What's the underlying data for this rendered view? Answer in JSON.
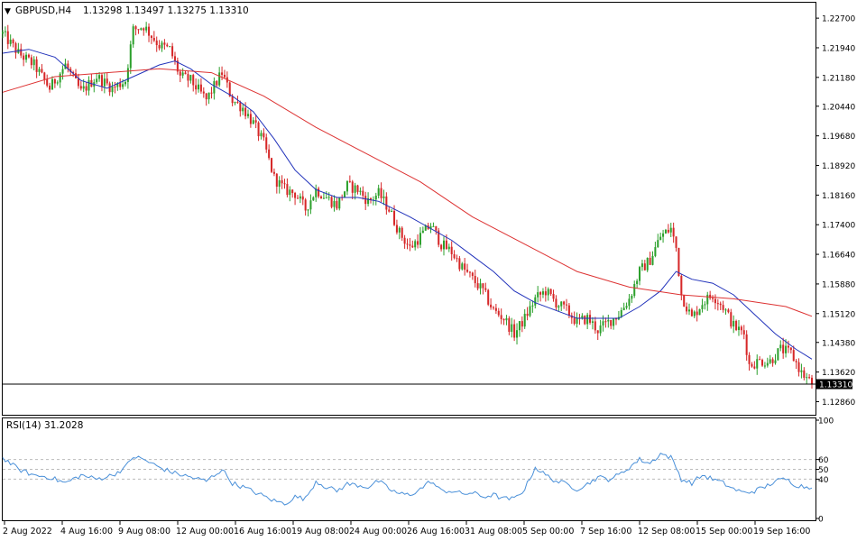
{
  "header": {
    "symbol": "GBPUSD,H4",
    "ohlc": "1.13298 1.13497 1.13275 1.13310"
  },
  "colors": {
    "bull": "#2ca02c",
    "bear": "#d62728",
    "ma_fast": "#2233bb",
    "ma_slow": "#dd3333",
    "rsi": "#4a90d9",
    "level_line": "#bbbbbb",
    "frame": "#000000"
  },
  "chart_data": [
    {
      "type": "candlestick",
      "title": "GBPUSD,H4",
      "y_ticks": [
        "1.22700",
        "1.21940",
        "1.21180",
        "1.20440",
        "1.19680",
        "1.18920",
        "1.18160",
        "1.17400",
        "1.16640",
        "1.15880",
        "1.15120",
        "1.14380",
        "1.13620",
        "1.12860"
      ],
      "ylim": [
        1.1257,
        1.2305
      ],
      "current_price": "1.13310",
      "x_ticks": [
        "2 Aug 2022",
        "4 Aug 16:00",
        "9 Aug 08:00",
        "12 Aug 00:00",
        "16 Aug 16:00",
        "19 Aug 08:00",
        "24 Aug 00:00",
        "26 Aug 16:00",
        "31 Aug 08:00",
        "5 Sep 00:00",
        "7 Sep 16:00",
        "12 Sep 08:00",
        "15 Sep 00:00",
        "19 Sep 16:00"
      ],
      "close_path": [
        [
          0,
          1.223
        ],
        [
          6,
          1.218
        ],
        [
          12,
          1.215
        ],
        [
          18,
          1.209
        ],
        [
          24,
          1.215
        ],
        [
          30,
          1.208
        ],
        [
          36,
          1.212
        ],
        [
          42,
          1.209
        ],
        [
          47,
          1.211
        ],
        [
          50,
          1.224
        ],
        [
          54,
          1.225
        ],
        [
          60,
          1.22
        ],
        [
          64,
          1.219
        ],
        [
          68,
          1.212
        ],
        [
          72,
          1.211
        ],
        [
          78,
          1.206
        ],
        [
          84,
          1.213
        ],
        [
          88,
          1.206
        ],
        [
          92,
          1.204
        ],
        [
          96,
          1.2
        ],
        [
          100,
          1.195
        ],
        [
          104,
          1.186
        ],
        [
          108,
          1.183
        ],
        [
          112,
          1.182
        ],
        [
          116,
          1.178
        ],
        [
          120,
          1.183
        ],
        [
          124,
          1.181
        ],
        [
          128,
          1.179
        ],
        [
          132,
          1.184
        ],
        [
          136,
          1.183
        ],
        [
          140,
          1.18
        ],
        [
          144,
          1.182
        ],
        [
          148,
          1.178
        ],
        [
          152,
          1.172
        ],
        [
          156,
          1.168
        ],
        [
          160,
          1.171
        ],
        [
          164,
          1.174
        ],
        [
          168,
          1.169
        ],
        [
          172,
          1.167
        ],
        [
          176,
          1.163
        ],
        [
          180,
          1.16
        ],
        [
          184,
          1.157
        ],
        [
          188,
          1.152
        ],
        [
          192,
          1.15
        ],
        [
          196,
          1.146
        ],
        [
          200,
          1.15
        ],
        [
          204,
          1.155
        ],
        [
          208,
          1.157
        ],
        [
          212,
          1.154
        ],
        [
          216,
          1.152
        ],
        [
          220,
          1.149
        ],
        [
          224,
          1.15
        ],
        [
          228,
          1.147
        ],
        [
          232,
          1.149
        ],
        [
          236,
          1.151
        ],
        [
          240,
          1.155
        ],
        [
          244,
          1.162
        ],
        [
          248,
          1.165
        ],
        [
          252,
          1.171
        ],
        [
          256,
          1.173
        ],
        [
          258,
          1.168
        ],
        [
          260,
          1.156
        ],
        [
          264,
          1.15
        ],
        [
          268,
          1.154
        ],
        [
          272,
          1.156
        ],
        [
          276,
          1.153
        ],
        [
          280,
          1.148
        ],
        [
          284,
          1.146
        ],
        [
          286,
          1.138
        ],
        [
          290,
          1.139
        ],
        [
          294,
          1.139
        ],
        [
          298,
          1.142
        ],
        [
          302,
          1.141
        ],
        [
          306,
          1.136
        ],
        [
          310,
          1.1331
        ]
      ],
      "series": [
        {
          "values": [
            [
              0,
              1.218
            ],
            [
              10,
              1.219
            ],
            [
              20,
              1.217
            ],
            [
              30,
              1.211
            ],
            [
              40,
              1.209
            ],
            [
              50,
              1.212
            ],
            [
              60,
              1.215
            ],
            [
              66,
              1.216
            ],
            [
              72,
              1.214
            ],
            [
              80,
              1.21
            ],
            [
              88,
              1.207
            ],
            [
              96,
              1.203
            ],
            [
              104,
              1.196
            ],
            [
              112,
              1.188
            ],
            [
              120,
              1.183
            ],
            [
              128,
              1.181
            ],
            [
              136,
              1.181
            ],
            [
              144,
              1.18
            ],
            [
              150,
              1.178
            ],
            [
              156,
              1.176
            ],
            [
              164,
              1.173
            ],
            [
              172,
              1.17
            ],
            [
              180,
              1.166
            ],
            [
              188,
              1.162
            ],
            [
              196,
              1.157
            ],
            [
              204,
              1.154
            ],
            [
              212,
              1.152
            ],
            [
              220,
              1.15
            ],
            [
              228,
              1.15
            ],
            [
              236,
              1.15
            ],
            [
              244,
              1.153
            ],
            [
              252,
              1.157
            ],
            [
              258,
              1.162
            ],
            [
              264,
              1.16
            ],
            [
              272,
              1.159
            ],
            [
              280,
              1.156
            ],
            [
              288,
              1.151
            ],
            [
              296,
              1.146
            ],
            [
              304,
              1.142
            ],
            [
              310,
              1.1395
            ]
          ]
        },
        {
          "values": [
            [
              0,
              1.208
            ],
            [
              20,
              1.212
            ],
            [
              40,
              1.213
            ],
            [
              60,
              1.214
            ],
            [
              80,
              1.213
            ],
            [
              100,
              1.207
            ],
            [
              120,
              1.199
            ],
            [
              140,
              1.192
            ],
            [
              160,
              1.185
            ],
            [
              180,
              1.176
            ],
            [
              200,
              1.169
            ],
            [
              220,
              1.162
            ],
            [
              240,
              1.158
            ],
            [
              260,
              1.156
            ],
            [
              280,
              1.155
            ],
            [
              300,
              1.153
            ],
            [
              310,
              1.1505
            ]
          ]
        }
      ]
    },
    {
      "type": "line",
      "title": "RSI(14) 31.2028",
      "y_ticks": [
        "100",
        "60",
        "50",
        "40",
        "0"
      ],
      "levels": [
        60,
        50,
        40
      ],
      "ylim": [
        0,
        100
      ],
      "series": [
        {
          "values": [
            [
              0,
              62
            ],
            [
              6,
              50
            ],
            [
              12,
              44
            ],
            [
              18,
              42
            ],
            [
              24,
              36
            ],
            [
              30,
              44
            ],
            [
              36,
              40
            ],
            [
              42,
              44
            ],
            [
              47,
              52
            ],
            [
              50,
              63
            ],
            [
              54,
              60
            ],
            [
              60,
              52
            ],
            [
              66,
              46
            ],
            [
              72,
              42
            ],
            [
              78,
              38
            ],
            [
              84,
              50
            ],
            [
              88,
              36
            ],
            [
              92,
              32
            ],
            [
              98,
              25
            ],
            [
              104,
              18
            ],
            [
              108,
              15
            ],
            [
              112,
              22
            ],
            [
              116,
              20
            ],
            [
              120,
              38
            ],
            [
              124,
              32
            ],
            [
              128,
              28
            ],
            [
              132,
              35
            ],
            [
              136,
              34
            ],
            [
              140,
              32
            ],
            [
              144,
              38
            ],
            [
              148,
              30
            ],
            [
              152,
              25
            ],
            [
              156,
              24
            ],
            [
              160,
              30
            ],
            [
              164,
              38
            ],
            [
              168,
              28
            ],
            [
              172,
              28
            ],
            [
              176,
              25
            ],
            [
              180,
              26
            ],
            [
              184,
              22
            ],
            [
              188,
              24
            ],
            [
              192,
              20
            ],
            [
              196,
              20
            ],
            [
              200,
              30
            ],
            [
              204,
              52
            ],
            [
              208,
              44
            ],
            [
              212,
              38
            ],
            [
              216,
              35
            ],
            [
              220,
              30
            ],
            [
              224,
              35
            ],
            [
              228,
              42
            ],
            [
              232,
              40
            ],
            [
              236,
              44
            ],
            [
              240,
              52
            ],
            [
              244,
              60
            ],
            [
              248,
              56
            ],
            [
              252,
              66
            ],
            [
              256,
              62
            ],
            [
              258,
              52
            ],
            [
              260,
              40
            ],
            [
              264,
              36
            ],
            [
              268,
              44
            ],
            [
              272,
              40
            ],
            [
              276,
              36
            ],
            [
              280,
              30
            ],
            [
              284,
              26
            ],
            [
              288,
              28
            ],
            [
              292,
              32
            ],
            [
              296,
              38
            ],
            [
              300,
              40
            ],
            [
              304,
              34
            ],
            [
              310,
              31
            ]
          ]
        }
      ]
    }
  ]
}
